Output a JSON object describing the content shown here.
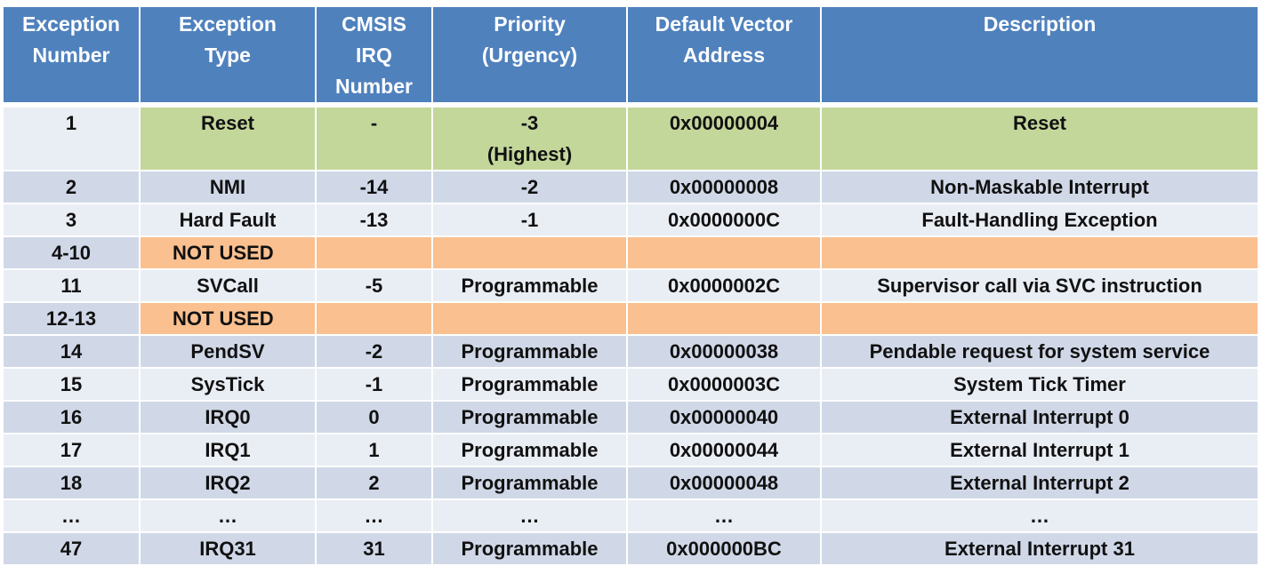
{
  "headers": [
    [
      "Exception",
      "Number"
    ],
    [
      "Exception",
      "Type"
    ],
    [
      "CMSIS",
      "IRQ",
      "Number"
    ],
    [
      "Priority",
      "(Urgency)"
    ],
    [
      "Default Vector",
      "Address"
    ],
    [
      "Description"
    ]
  ],
  "rows": [
    {
      "number": "1",
      "type": "Reset",
      "irq": "-",
      "priority": "-3",
      "priority2": "(Highest)",
      "address": "0x00000004",
      "description": "Reset"
    },
    {
      "number": "2",
      "type": "NMI",
      "irq": "-14",
      "priority": "-2",
      "address": "0x00000008",
      "description": "Non-Maskable Interrupt"
    },
    {
      "number": "3",
      "type": "Hard Fault",
      "irq": "-13",
      "priority": "-1",
      "address": "0x0000000C",
      "description": "Fault-Handling Exception"
    },
    {
      "number": "4-10",
      "type": "NOT USED"
    },
    {
      "number": "11",
      "type": "SVCall",
      "irq": "-5",
      "priority": "Programmable",
      "address": "0x0000002C",
      "description": "Supervisor call via SVC instruction"
    },
    {
      "number": "12-13",
      "type": "NOT USED"
    },
    {
      "number": "14",
      "type": "PendSV",
      "irq": "-2",
      "priority": "Programmable",
      "address": "0x00000038",
      "description": "Pendable request for system service"
    },
    {
      "number": "15",
      "type": "SysTick",
      "irq": "-1",
      "priority": "Programmable",
      "address": "0x0000003C",
      "description": "System Tick Timer"
    },
    {
      "number": "16",
      "type": "IRQ0",
      "irq": "0",
      "priority": "Programmable",
      "address": "0x00000040",
      "description": "External Interrupt 0"
    },
    {
      "number": "17",
      "type": "IRQ1",
      "irq": "1",
      "priority": "Programmable",
      "address": "0x00000044",
      "description": "External Interrupt 1"
    },
    {
      "number": "18",
      "type": "IRQ2",
      "irq": "2",
      "priority": "Programmable",
      "address": "0x00000048",
      "description": "External Interrupt 2"
    },
    {
      "number": "…",
      "type": "…",
      "irq": "…",
      "priority": "…",
      "address": "…",
      "description": "…"
    },
    {
      "number": "47",
      "type": "IRQ31",
      "irq": "31",
      "priority": "Programmable",
      "address": "0x000000BC",
      "description": "External Interrupt 31"
    }
  ],
  "colors": {
    "header": "#4f81bd",
    "row_dark": "#d0d8e8",
    "row_light": "#e9edf4",
    "reset_highlight": "#c4d79b",
    "not_used_highlight": "#fac090"
  }
}
